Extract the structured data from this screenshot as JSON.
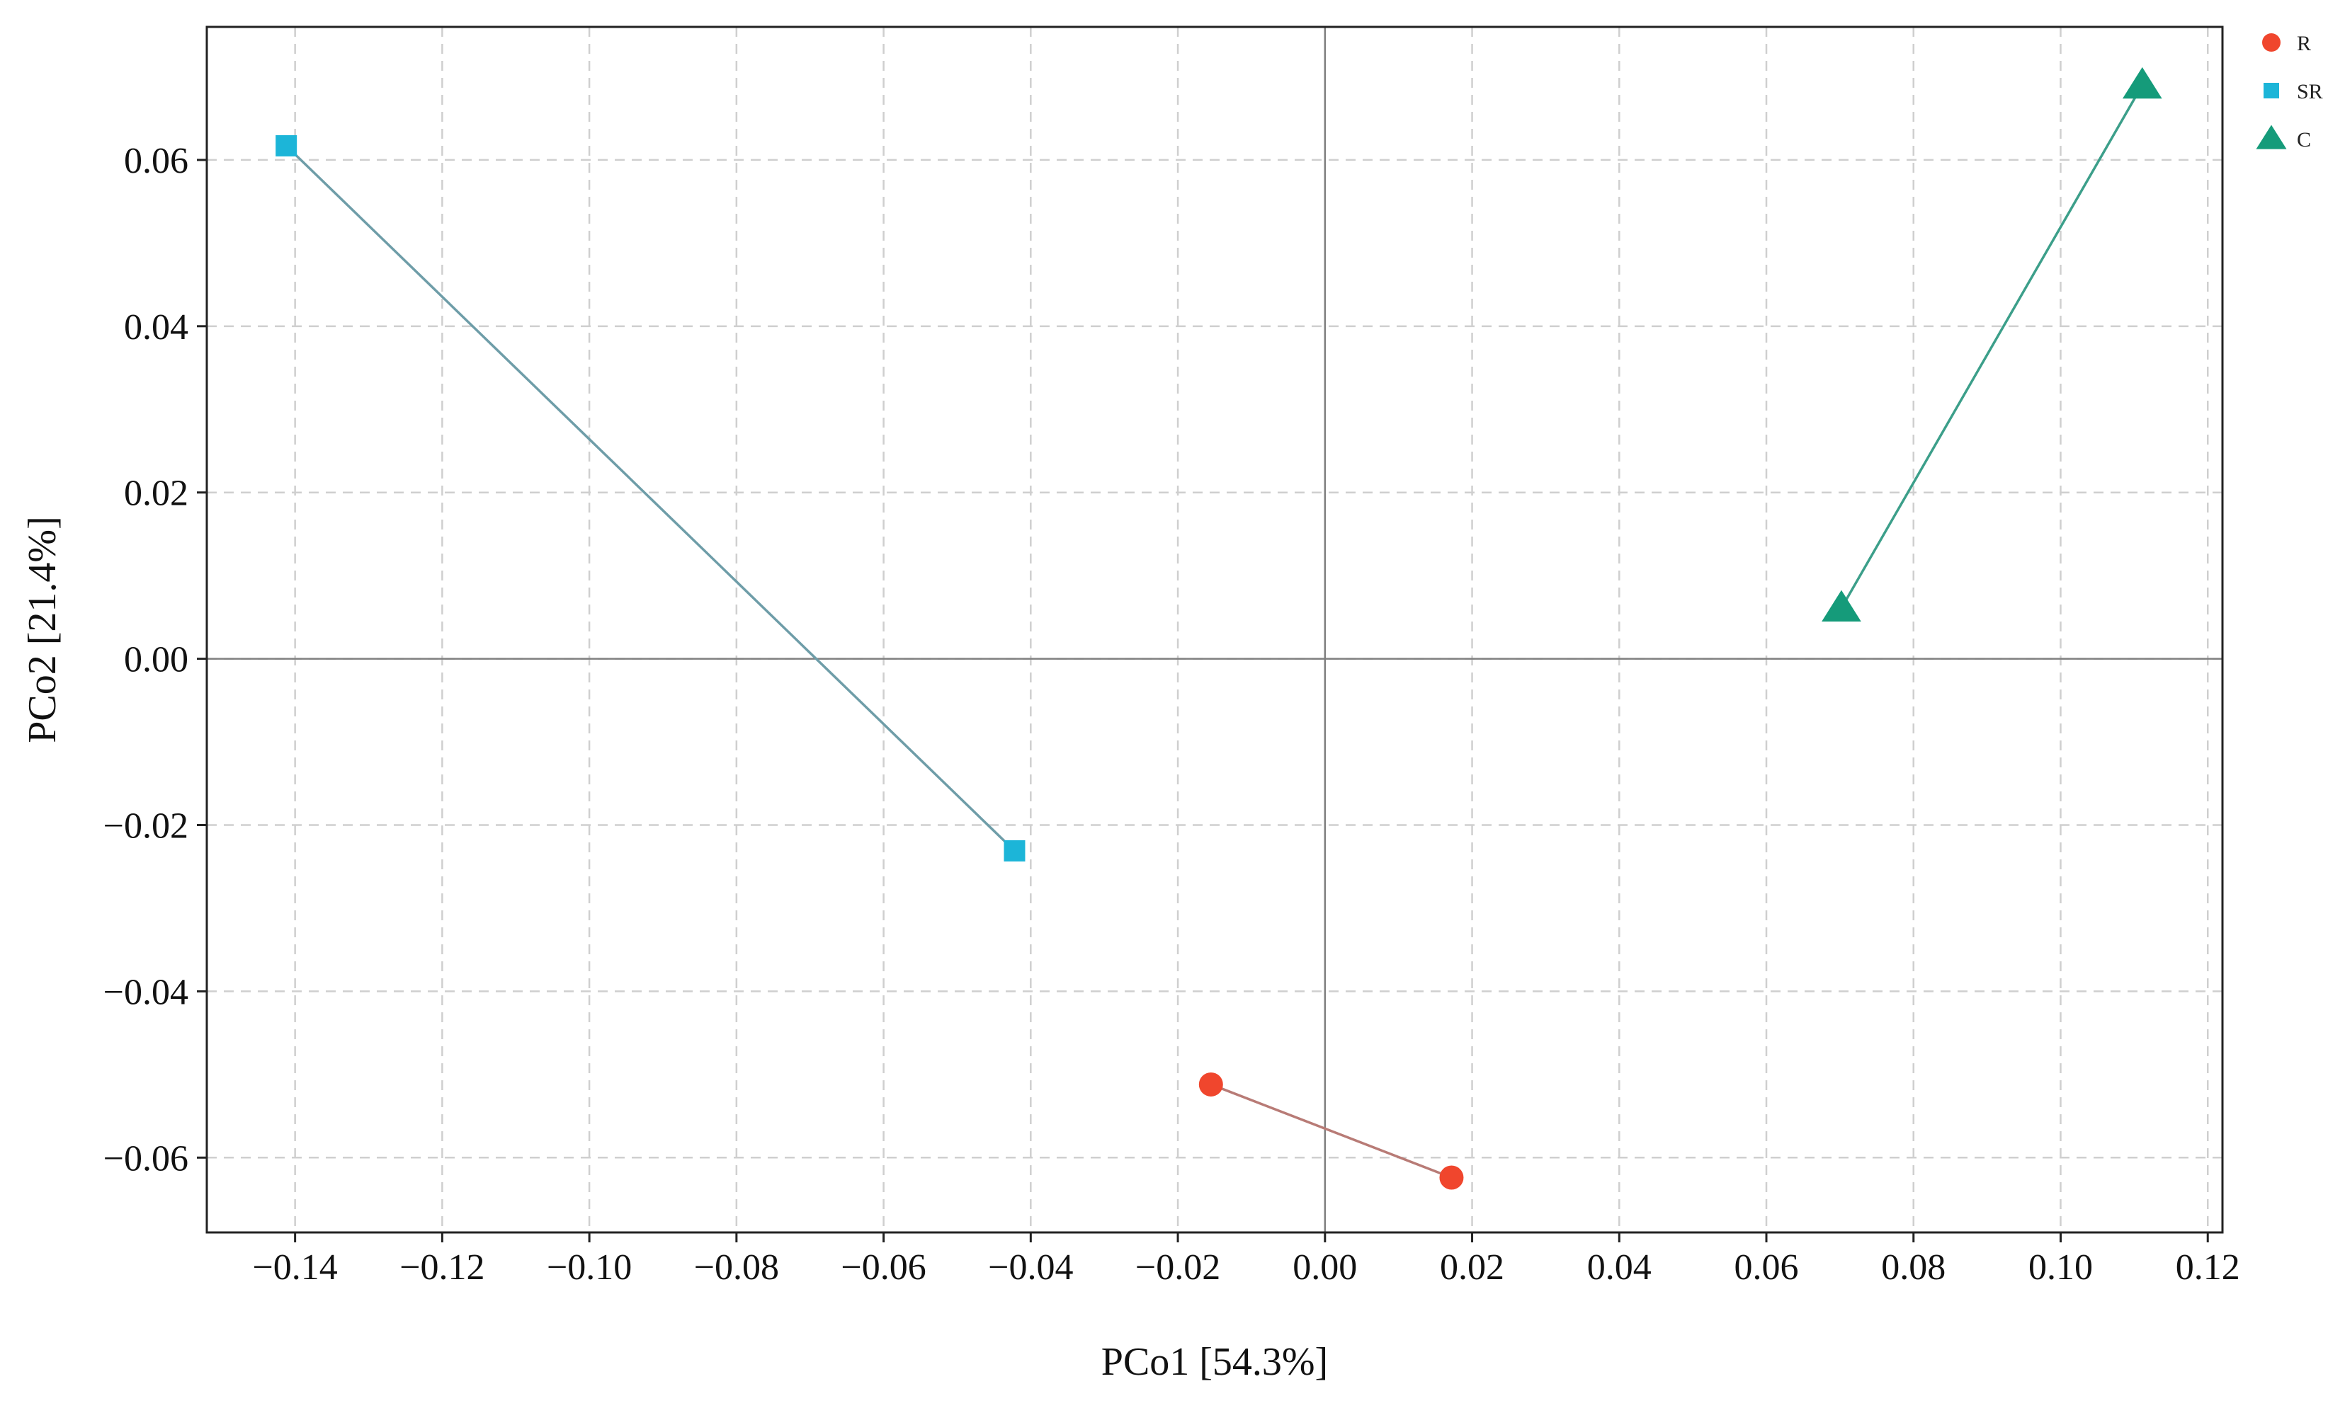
{
  "chart_data": {
    "type": "scatter",
    "xlabel": "PCo1 [54.3%]",
    "ylabel": "PCo2 [21.4%]",
    "xlim": [
      -0.152,
      0.122
    ],
    "ylim": [
      -0.069,
      0.076
    ],
    "xticks": [
      -0.14,
      -0.12,
      -0.1,
      -0.08,
      -0.06,
      -0.04,
      -0.02,
      0.0,
      0.02,
      0.04,
      0.06,
      0.08,
      0.1,
      0.12
    ],
    "xtick_labels": [
      "−0.14",
      "−0.12",
      "−0.10",
      "−0.08",
      "−0.06",
      "−0.04",
      "−0.02",
      "0.00",
      "0.02",
      "0.04",
      "0.06",
      "0.08",
      "0.10",
      "0.12"
    ],
    "yticks": [
      -0.06,
      -0.04,
      -0.02,
      0.0,
      0.02,
      0.04,
      0.06
    ],
    "ytick_labels": [
      "−0.06",
      "−0.04",
      "−0.02",
      "0.00",
      "0.02",
      "0.04",
      "0.06"
    ],
    "grid": true,
    "zero_lines": true,
    "legend_position": "top-right",
    "series": [
      {
        "name": "R",
        "marker": "circle",
        "color": "#f0462d",
        "line_color": "#b87b76",
        "points": [
          {
            "x": -0.0155,
            "y": -0.0512
          },
          {
            "x": 0.0172,
            "y": -0.0624
          }
        ]
      },
      {
        "name": "SR",
        "marker": "square",
        "color": "#1cb5d8",
        "line_color": "#6e9da8",
        "points": [
          {
            "x": -0.1412,
            "y": 0.0617
          },
          {
            "x": -0.0422,
            "y": -0.0231
          }
        ]
      },
      {
        "name": "C",
        "marker": "triangle",
        "color": "#159b7a",
        "line_color": "#3c9f8a",
        "points": [
          {
            "x": 0.0702,
            "y": 0.0061
          },
          {
            "x": 0.1111,
            "y": 0.069
          }
        ]
      }
    ]
  }
}
